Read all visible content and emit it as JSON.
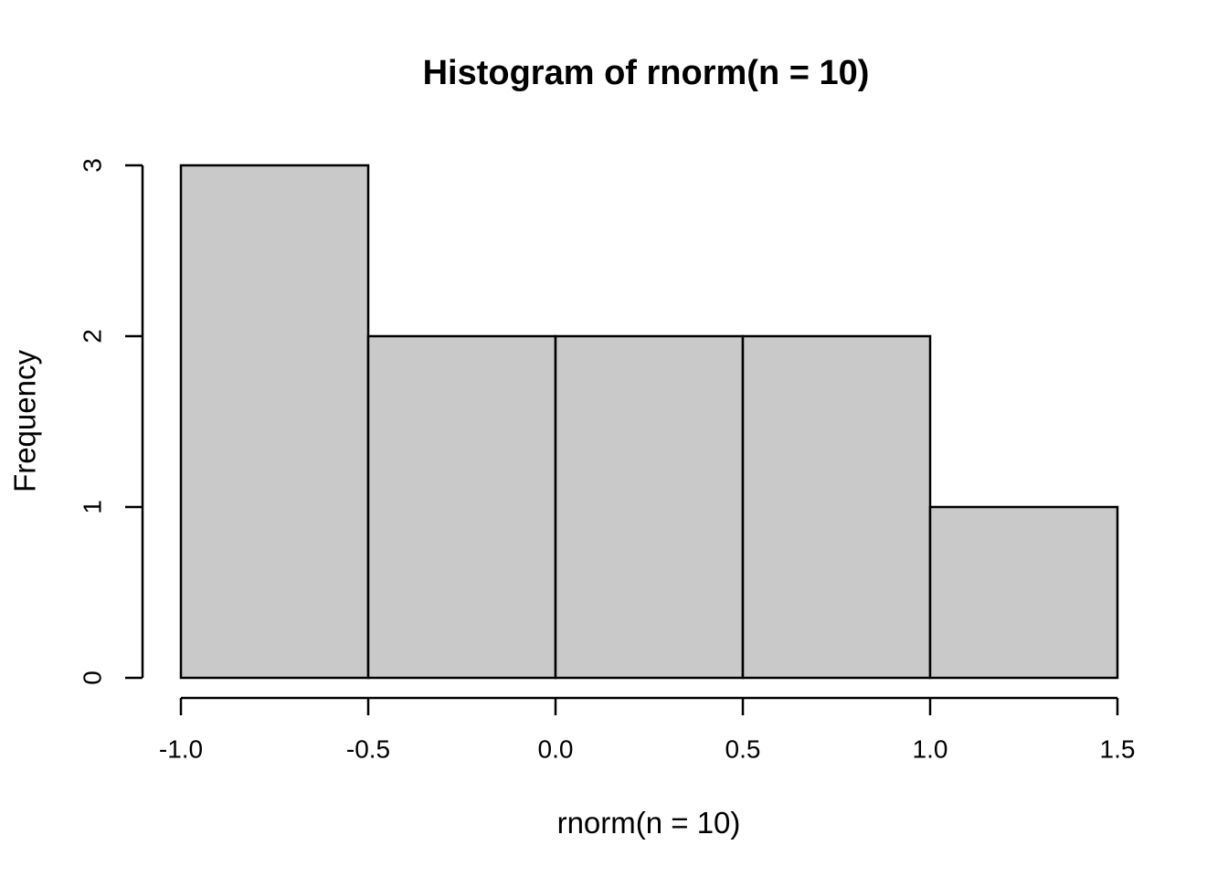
{
  "figure": {
    "background": "#FFFFFF"
  },
  "chart_data": {
    "type": "bar",
    "subtype": "histogram",
    "title": "Histogram of rnorm(n = 10)",
    "xlabel": "rnorm(n = 10)",
    "ylabel": "Frequency",
    "breaks": [
      -1.0,
      -0.5,
      0.0,
      0.5,
      1.0,
      1.5
    ],
    "counts": [
      3,
      2,
      2,
      2,
      1
    ],
    "series": [
      {
        "name": "Frequency",
        "values": [
          3,
          2,
          2,
          2,
          1
        ]
      }
    ],
    "categories": [
      "[-1.0,-0.5]",
      "(-0.5,0.0]",
      "(0.0,0.5]",
      "(0.5,1.0]",
      "(1.0,1.5]"
    ],
    "xlim": [
      -1.0,
      1.5
    ],
    "ylim": [
      0,
      3
    ],
    "x_ticks": {
      "values": [
        -1.0,
        -0.5,
        0.0,
        0.5,
        1.0,
        1.5
      ],
      "labels": [
        "-1.0",
        "-0.5",
        "0.0",
        "0.5",
        "1.0",
        "1.5"
      ]
    },
    "y_ticks": {
      "values": [
        0,
        1,
        2,
        3
      ],
      "labels": [
        "0",
        "1",
        "2",
        "3"
      ]
    },
    "grid": false,
    "legend_position": "none",
    "colors": {
      "bar_fill": "#C9C9C9",
      "bar_border": "#000000",
      "axis": "#000000",
      "text": "#000000",
      "background": "#FFFFFF"
    }
  }
}
